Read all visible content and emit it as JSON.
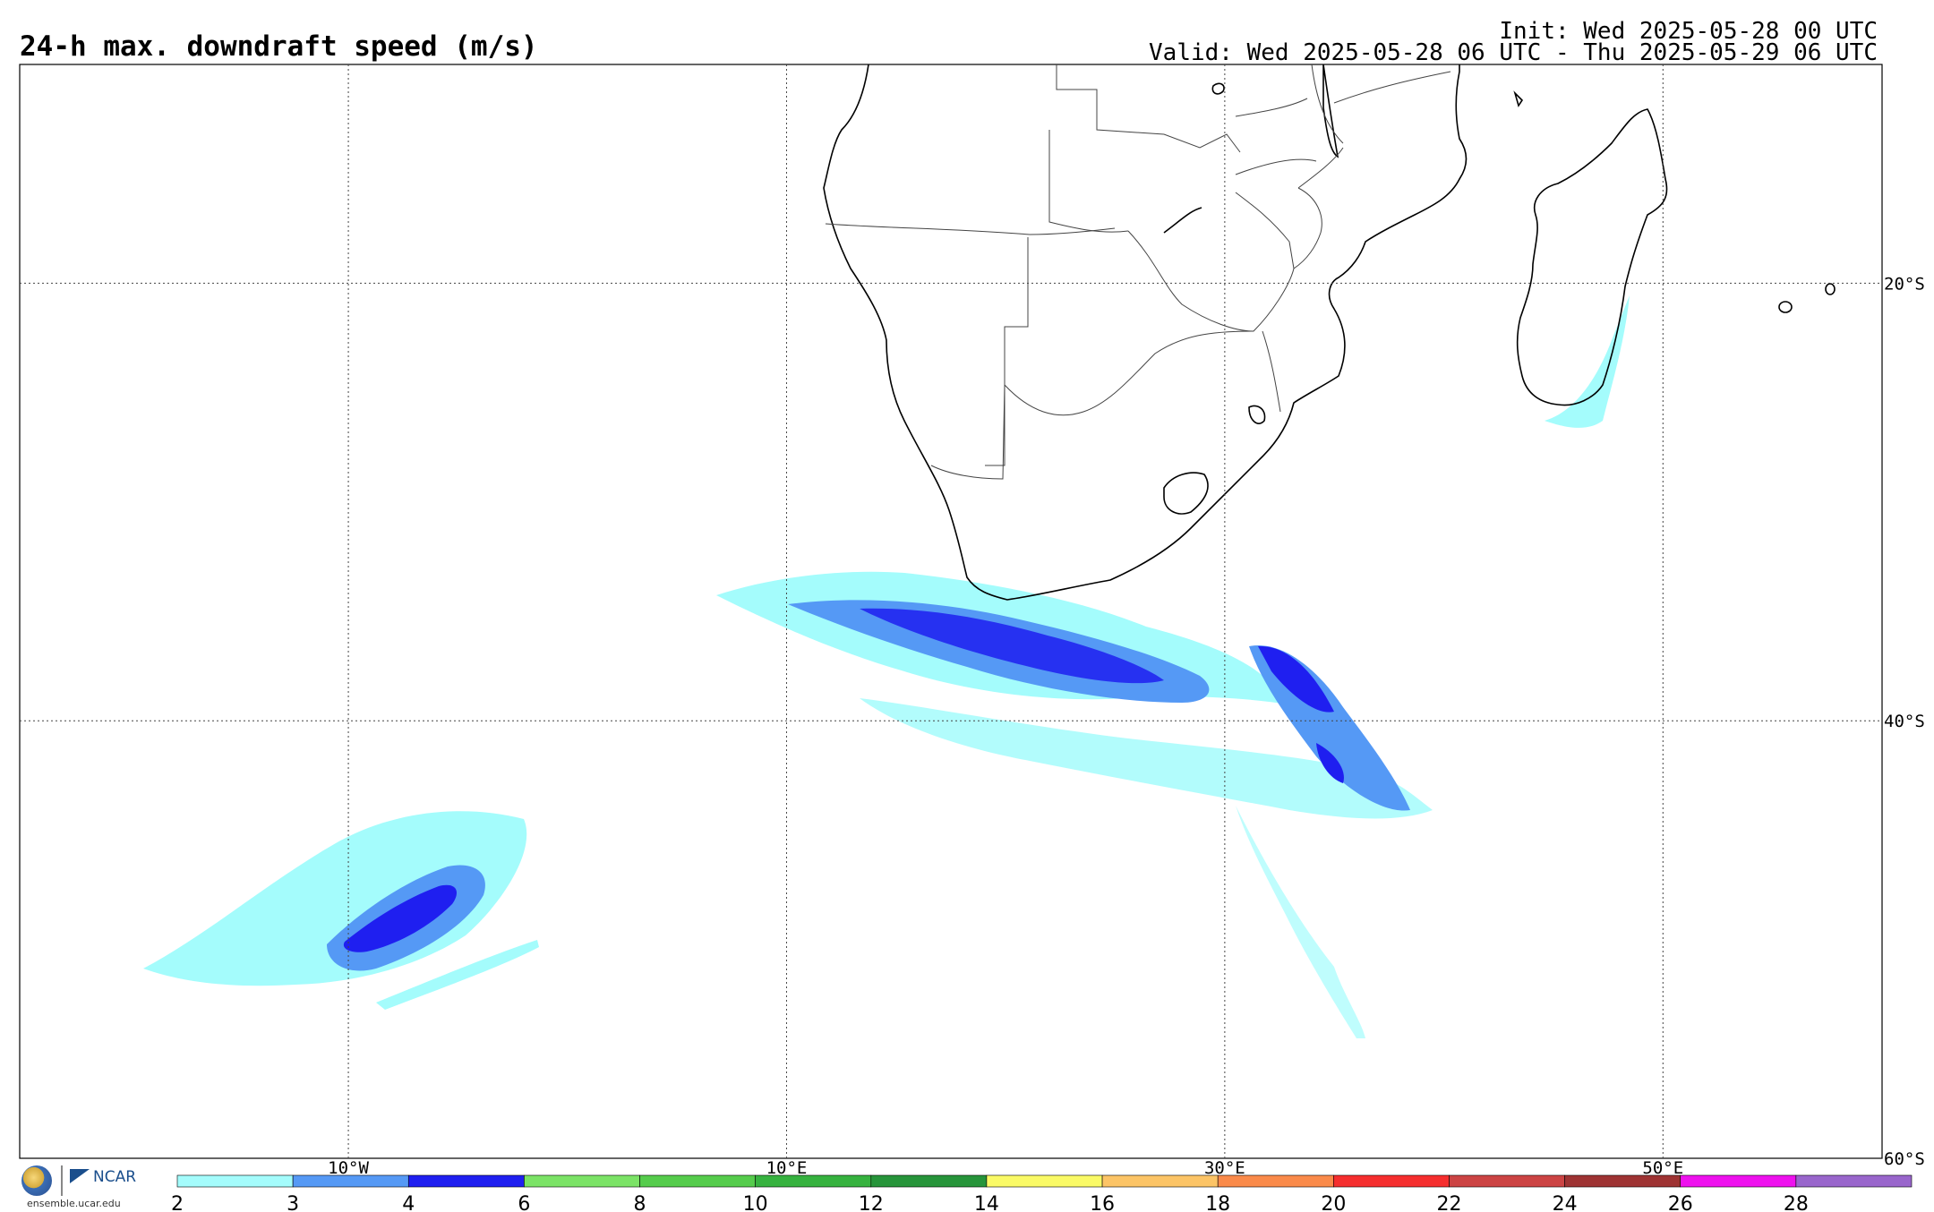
{
  "header": {
    "title": "24-h max. downdraft speed (m/s)",
    "init": "Init: Wed 2025-05-28 00 UTC",
    "valid": "Valid: Wed 2025-05-28 06 UTC - Thu 2025-05-29 06 UTC"
  },
  "map": {
    "projection": "cylindrical lat-lon",
    "lon_range": [
      -25,
      60
    ],
    "lat_range": [
      -60,
      -10
    ],
    "lon_gridlines": [
      {
        "label": "10°W",
        "value": -10
      },
      {
        "label": "10°E",
        "value": 10
      },
      {
        "label": "30°E",
        "value": 30
      },
      {
        "label": "50°E",
        "value": 50
      }
    ],
    "lat_gridlines": [
      {
        "label": "20°S",
        "value": -20
      },
      {
        "label": "40°S",
        "value": -40
      },
      {
        "label": "60°S",
        "value": -60
      }
    ],
    "grid": "dotted"
  },
  "colorbar": {
    "ticks": [
      "2",
      "3",
      "4",
      "6",
      "8",
      "10",
      "12",
      "14",
      "16",
      "18",
      "20",
      "22",
      "24",
      "26",
      "28"
    ],
    "colors": [
      "#a4fcfc",
      "#5599f5",
      "#1f1ff0",
      "#7be366",
      "#55cc4c",
      "#36b23f",
      "#26943a",
      "#fafa66",
      "#fcc466",
      "#fa8a4a",
      "#f52e2e",
      "#cc4444",
      "#9e3333",
      "#ee11ee",
      "#9966cc"
    ]
  },
  "branding": {
    "logos": [
      "nsf-seal-icon",
      "ncar-logo-icon"
    ],
    "ncar_text": "NCAR",
    "url": "ensemble.ucar.edu"
  }
}
